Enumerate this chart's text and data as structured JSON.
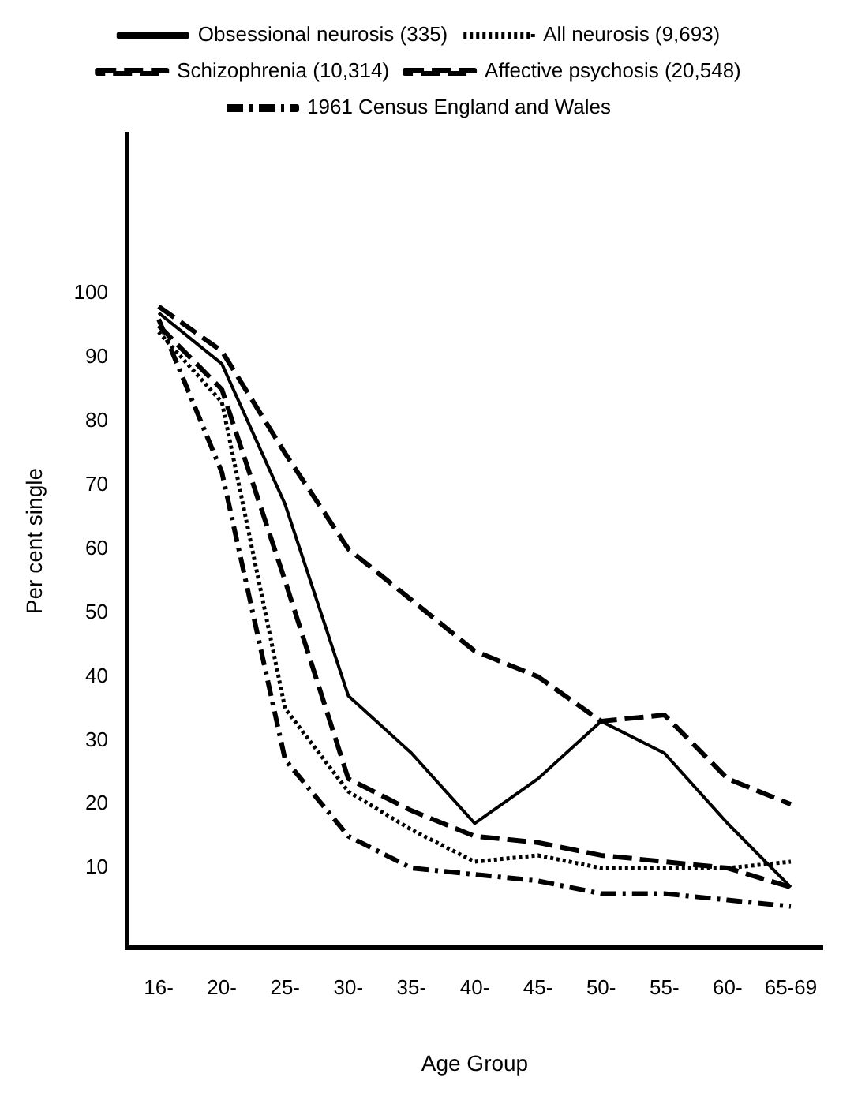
{
  "chart_data": {
    "type": "line",
    "xlabel": "Age Group",
    "ylabel": "Per cent single",
    "categories": [
      "16-",
      "20-",
      "25-",
      "30-",
      "35-",
      "40-",
      "45-",
      "50-",
      "55-",
      "60-",
      "65-69"
    ],
    "series": [
      {
        "name": "Obsessional neurosis (335)",
        "color": "#000000",
        "line_style": "solid",
        "values": [
          97,
          89,
          67,
          37,
          28,
          17,
          24,
          33,
          28,
          17,
          7
        ]
      },
      {
        "name": "All neurosis (9,693)",
        "color": "#000000",
        "line_style": "dotted",
        "values": [
          94,
          83,
          35,
          22,
          16,
          11,
          12,
          10,
          10,
          10,
          11
        ]
      },
      {
        "name": "Schizophrenia (10,314)",
        "color": "#000000",
        "line_style": "dashed",
        "values": [
          98,
          91,
          75,
          60,
          52,
          44,
          40,
          33,
          34,
          24,
          20
        ]
      },
      {
        "name": "Affective psychosis (20,548)",
        "color": "#000000",
        "line_style": "dashed",
        "values": [
          95,
          85,
          55,
          24,
          19,
          15,
          14,
          12,
          11,
          10,
          7
        ]
      },
      {
        "name": "1961 Census England and Wales",
        "color": "#000000",
        "line_style": "dashdot",
        "values": [
          96,
          72,
          27,
          15,
          10,
          9,
          8,
          6,
          6,
          5,
          4
        ]
      }
    ],
    "ylim": [
      -2.5,
      125
    ],
    "yticks": [
      10,
      20,
      30,
      40,
      50,
      60,
      70,
      80,
      90,
      100
    ],
    "grid": false,
    "legend": "top",
    "marker": "none"
  }
}
